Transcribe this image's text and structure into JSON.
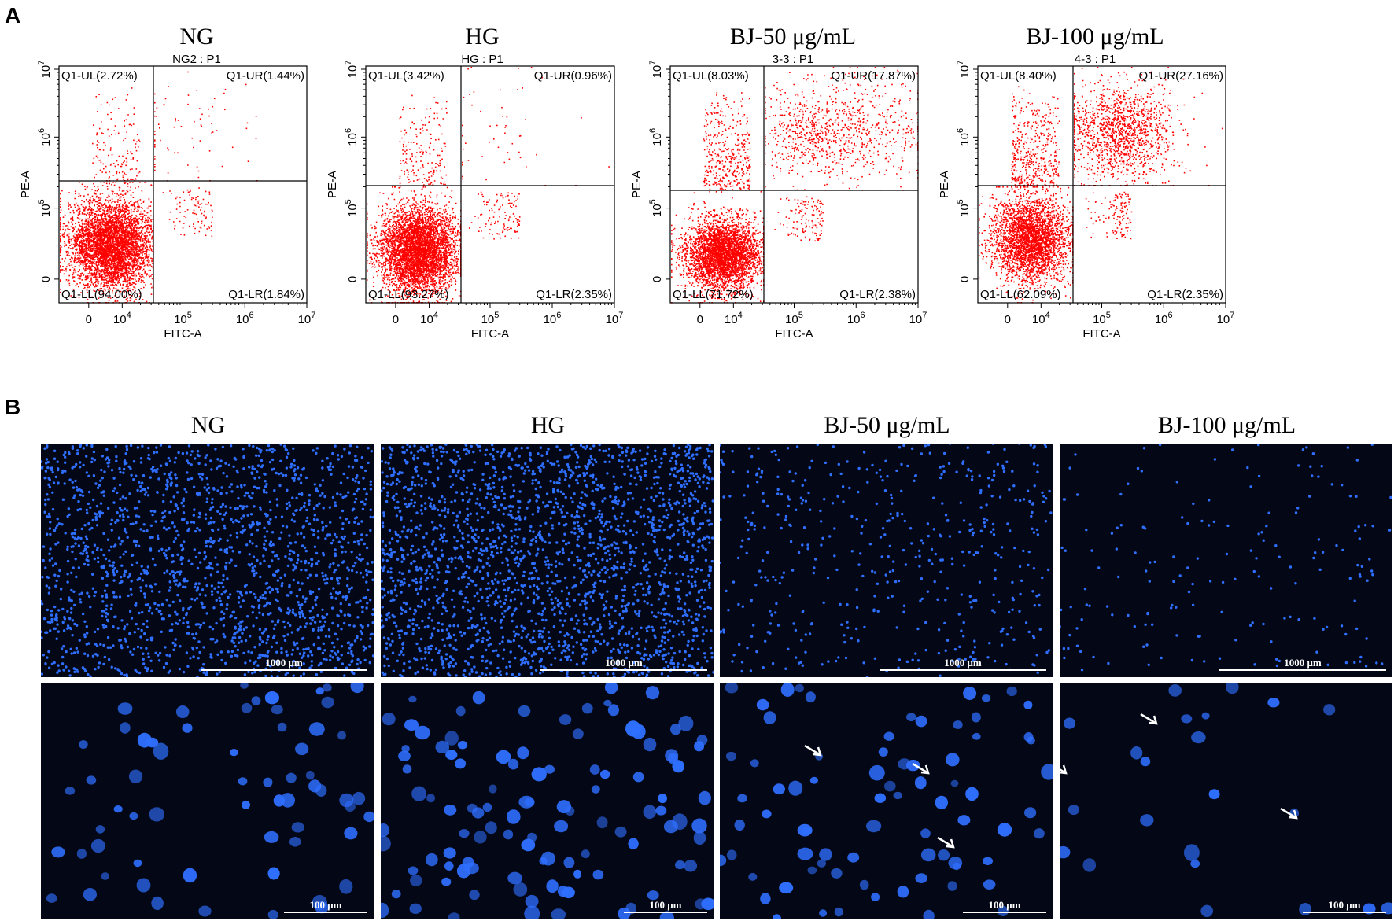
{
  "figure": {
    "panel_a_letter": "A",
    "panel_b_letter": "B"
  },
  "chart_data": [
    {
      "type": "scatter",
      "title": "NG",
      "subtitle": "NG2 : P1",
      "xlabel": "FITC-A",
      "ylabel": "PE-A",
      "x_tick_labels": [
        "0",
        "10^4",
        "10^5",
        "10^6",
        "10^7"
      ],
      "y_tick_labels": [
        "0",
        "10^5",
        "10^6",
        "10^7"
      ],
      "quadrants": {
        "UL": "Q1-UL(2.72%)",
        "UR": "Q1-UR(1.44%)",
        "LL": "Q1-LL(94.00%)",
        "LR": "Q1-LR(1.84%)"
      },
      "percentages": {
        "UL": 2.72,
        "UR": 1.44,
        "LL": 94.0,
        "LR": 1.84
      },
      "marker_color": "#ff0000"
    },
    {
      "type": "scatter",
      "title": "HG",
      "subtitle": "HG : P1",
      "xlabel": "FITC-A",
      "ylabel": "PE-A",
      "x_tick_labels": [
        "0",
        "10^4",
        "10^5",
        "10^6",
        "10^7"
      ],
      "y_tick_labels": [
        "0",
        "10^5",
        "10^6",
        "10^7"
      ],
      "quadrants": {
        "UL": "Q1-UL(3.42%)",
        "UR": "Q1-UR(0.96%)",
        "LL": "Q1-LL(93.27%)",
        "LR": "Q1-LR(2.35%)"
      },
      "percentages": {
        "UL": 3.42,
        "UR": 0.96,
        "LL": 93.27,
        "LR": 2.35
      },
      "marker_color": "#ff0000"
    },
    {
      "type": "scatter",
      "title": "BJ-50 μg/mL",
      "subtitle": "3-3 : P1",
      "xlabel": "FITC-A",
      "ylabel": "PE-A",
      "x_tick_labels": [
        "0",
        "10^4",
        "10^5",
        "10^6",
        "10^7"
      ],
      "y_tick_labels": [
        "0",
        "10^5",
        "10^6",
        "10^7"
      ],
      "quadrants": {
        "UL": "Q1-UL(8.03%)",
        "UR": "Q1-UR(17.87%)",
        "LL": "Q1-LL(71.72%)",
        "LR": "Q1-LR(2.38%)"
      },
      "percentages": {
        "UL": 8.03,
        "UR": 17.87,
        "LL": 71.72,
        "LR": 2.38
      },
      "marker_color": "#ff0000"
    },
    {
      "type": "scatter",
      "title": "BJ-100 μg/mL",
      "subtitle": "4-3 : P1",
      "xlabel": "FITC-A",
      "ylabel": "PE-A",
      "x_tick_labels": [
        "0",
        "10^4",
        "10^5",
        "10^6",
        "10^7"
      ],
      "y_tick_labels": [
        "0",
        "10^5",
        "10^6",
        "10^7"
      ],
      "quadrants": {
        "UL": "Q1-UL(8.40%)",
        "UR": "Q1-UR(27.16%)",
        "LL": "Q1-LL(62.09%)",
        "LR": "Q1-LR(2.35%)"
      },
      "percentages": {
        "UL": 8.4,
        "UR": 27.16,
        "LL": 62.09,
        "LR": 2.35
      },
      "marker_color": "#ff0000"
    }
  ],
  "microscopy": {
    "titles": [
      "NG",
      "HG",
      "BJ-50 μg/mL",
      "BJ-100 μg/mL"
    ],
    "low_mag_scale": "1000 μm",
    "high_mag_scale": "100 μm",
    "nuclei_color": "#2f6fff",
    "background_color": "#030716",
    "arrow_color": "#ffffff"
  }
}
